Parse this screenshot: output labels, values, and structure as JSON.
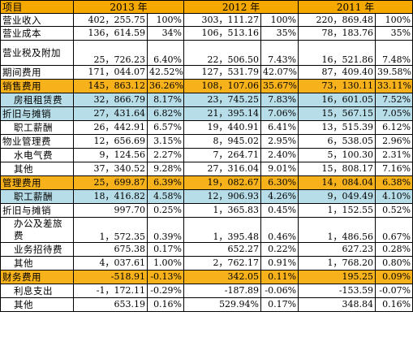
{
  "header": {
    "item": "项目",
    "y2013": "2013 年",
    "y2012": "2012 年",
    "y2011": "2011 年"
  },
  "rows": [
    {
      "label": "营业收入",
      "v13": "402，255.75",
      "p13": "100%",
      "v12": "303，111.27",
      "p12": "100%",
      "v11": "220，869.48",
      "p11": "100%",
      "style": "white"
    },
    {
      "label": "营业成本",
      "v13": "136，614.59",
      "p13": "34%",
      "v12": "106，513.16",
      "p12": "35%",
      "v11": "78，183.76",
      "p11": "35%",
      "style": "white"
    },
    {
      "label": "营业税及附加",
      "v13": "25，726.23",
      "p13": "6.40%",
      "v12": "22，506.50",
      "p12": "7.43%",
      "v11": "16，521.86",
      "p11": "7.48%",
      "style": "white",
      "tall": true
    },
    {
      "label": "期间费用",
      "v13": "171，044.07",
      "p13": "42.52%",
      "v12": "127，531.79",
      "p12": "42.07%",
      "v11": "87，409.40",
      "p11": "39.58%",
      "style": "white"
    },
    {
      "label": "销售费用",
      "v13": "145，863.12",
      "p13": "36.26%",
      "v12": "108，107.06",
      "p12": "35.67%",
      "v11": "73，130.11",
      "p11": "33.11%",
      "style": "orange"
    },
    {
      "label": "房租租赁费",
      "v13": "32，866.79",
      "p13": "8.17%",
      "v12": "23，745.25",
      "p12": "7.83%",
      "v11": "16，601.05",
      "p11": "7.52%",
      "style": "blue",
      "indent": true
    },
    {
      "label": "折旧与摊销",
      "v13": "27，431.64",
      "p13": "6.82%",
      "v12": "21，395.14",
      "p12": "7.06%",
      "v11": "15，567.15",
      "p11": "7.05%",
      "style": "blue"
    },
    {
      "label": "职工薪酬",
      "v13": "26，442.91",
      "p13": "6.57%",
      "v12": "19，440.91",
      "p12": "6.41%",
      "v11": "13，515.39",
      "p11": "6.12%",
      "style": "white",
      "indent": true
    },
    {
      "label": "物业管理费",
      "v13": "12，656.69",
      "p13": "3.15%",
      "v12": "8，945.02",
      "p12": "2.95%",
      "v11": "6，538.05",
      "p11": "2.96%",
      "style": "white"
    },
    {
      "label": "水电气费",
      "v13": "9，124.56",
      "p13": "2.27%",
      "v12": "7，264.71",
      "p12": "2.40%",
      "v11": "5，100.30",
      "p11": "2.31%",
      "style": "white",
      "indent": true
    },
    {
      "label": "其他",
      "v13": "37，340.52",
      "p13": "9.28%",
      "v12": "27，316.04",
      "p12": "9.01%",
      "v11": "15，808.17",
      "p11": "7.16%",
      "style": "white",
      "indent": true
    },
    {
      "label": "管理费用",
      "v13": "25，699.87",
      "p13": "6.39%",
      "v12": "19，082.67",
      "p12": "6.30%",
      "v11": "14，084.04",
      "p11": "6.38%",
      "style": "orange"
    },
    {
      "label": "职工薪酬",
      "v13": "18，416.82",
      "p13": "4.58%",
      "v12": "12，906.93",
      "p12": "4.26%",
      "v11": "9，049.49",
      "p11": "4.10%",
      "style": "blue",
      "indent": true
    },
    {
      "label": "折旧与摊销",
      "v13": "997.70",
      "p13": "0.25%",
      "v12": "1，365.83",
      "p12": "0.45%",
      "v11": "1，152.55",
      "p11": "0.52%",
      "style": "white"
    },
    {
      "label": "办公及差旅费",
      "v13": "1，572.35",
      "p13": "0.39%",
      "v12": "1，395.48",
      "p12": "0.46%",
      "v11": "1，486.56",
      "p11": "0.67%",
      "style": "white",
      "tall": true,
      "indent": true
    },
    {
      "label": "业务招待费",
      "v13": "675.38",
      "p13": "0.17%",
      "v12": "652.27",
      "p12": "0.22%",
      "v11": "627.23",
      "p11": "0.28%",
      "style": "white",
      "indent": true
    },
    {
      "label": "其他",
      "v13": "4，037.61",
      "p13": "1.00%",
      "v12": "2，762.17",
      "p12": "0.91%",
      "v11": "1，768.20",
      "p11": "0.80%",
      "style": "white",
      "indent": true
    },
    {
      "label": "财务费用",
      "v13": "-518.91",
      "p13": "-0.13%",
      "v12": "342.05",
      "p12": "0.11%",
      "v11": "195.25",
      "p11": "0.09%",
      "style": "orange"
    },
    {
      "label": "利息支出",
      "v13": "-1，172.11",
      "p13": "-0.29%",
      "v12": "-187.89",
      "p12": "-0.06%",
      "v11": "-153.59",
      "p11": "-0.07%",
      "style": "white",
      "indent": true
    },
    {
      "label": "其他",
      "v13": "653.19",
      "p13": "0.16%",
      "v12": "529.94%",
      "p12": "0.17%",
      "v11": "348.84",
      "p11": "0.16%",
      "style": "white",
      "indent": true
    }
  ]
}
